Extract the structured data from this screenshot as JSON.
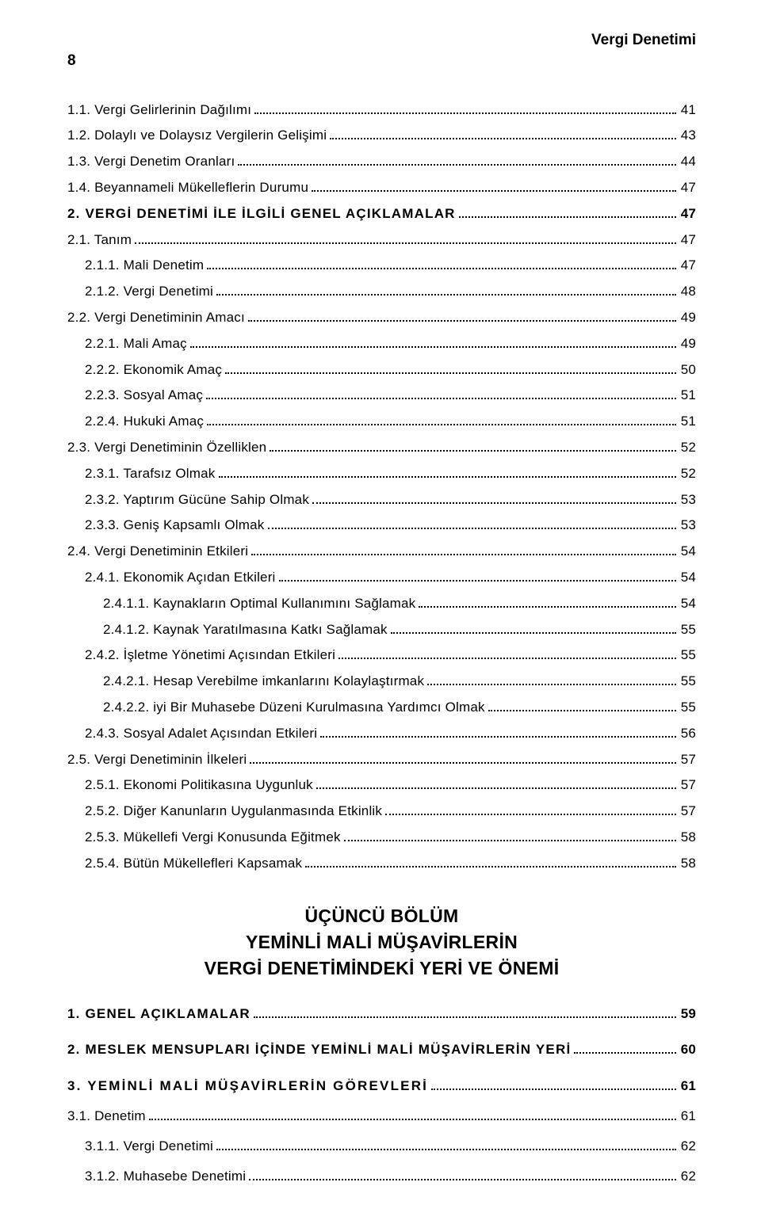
{
  "header": {
    "page_number": "8",
    "running_title": "Vergi Denetimi"
  },
  "toc": [
    {
      "indent": 0,
      "bold": false,
      "label": "1.1. Vergi Gelirlerinin Dağılımı",
      "page": "41"
    },
    {
      "indent": 0,
      "bold": false,
      "label": "1.2. Dolaylı ve Dolaysız Vergilerin Gelişimi",
      "page": "43"
    },
    {
      "indent": 0,
      "bold": false,
      "label": "1.3. Vergi Denetim Oranları",
      "page": "44"
    },
    {
      "indent": 0,
      "bold": false,
      "label": "1.4. Beyannameli Mükelleflerin Durumu",
      "page": "47"
    },
    {
      "indent": 0,
      "bold": true,
      "label": "2. VERGİ DENETİMİ İLE İLGİLİ GENEL AÇIKLAMALAR",
      "page": "47",
      "ls": true
    },
    {
      "indent": 0,
      "bold": false,
      "label": "2.1. Tanım",
      "page": "47"
    },
    {
      "indent": 1,
      "bold": false,
      "label": "2.1.1. Mali Denetim",
      "page": "47"
    },
    {
      "indent": 1,
      "bold": false,
      "label": "2.1.2. Vergi Denetimi",
      "page": "48"
    },
    {
      "indent": 0,
      "bold": false,
      "label": "2.2. Vergi Denetiminin Amacı",
      "page": "49"
    },
    {
      "indent": 1,
      "bold": false,
      "label": "2.2.1. Mali Amaç",
      "page": "49"
    },
    {
      "indent": 1,
      "bold": false,
      "label": "2.2.2. Ekonomik Amaç",
      "page": "50"
    },
    {
      "indent": 1,
      "bold": false,
      "label": "2.2.3. Sosyal Amaç",
      "page": "51"
    },
    {
      "indent": 1,
      "bold": false,
      "label": "2.2.4. Hukuki Amaç",
      "page": "51"
    },
    {
      "indent": 0,
      "bold": false,
      "label": "2.3. Vergi Denetiminin Özelliklen",
      "page": "52"
    },
    {
      "indent": 1,
      "bold": false,
      "label": "2.3.1. Tarafsız Olmak",
      "page": "52"
    },
    {
      "indent": 1,
      "bold": false,
      "label": "2.3.2. Yaptırım Gücüne Sahip Olmak",
      "page": "53"
    },
    {
      "indent": 1,
      "bold": false,
      "label": "2.3.3. Geniş Kapsamlı Olmak",
      "page": "53"
    },
    {
      "indent": 0,
      "bold": false,
      "label": "2.4. Vergi Denetiminin Etkileri",
      "page": "54"
    },
    {
      "indent": 1,
      "bold": false,
      "label": "2.4.1. Ekonomik Açıdan Etkileri",
      "page": "54"
    },
    {
      "indent": 2,
      "bold": false,
      "label": "2.4.1.1. Kaynakların Optimal Kullanımını Sağlamak",
      "page": "54"
    },
    {
      "indent": 2,
      "bold": false,
      "label": "2.4.1.2. Kaynak Yaratılmasına Katkı Sağlamak",
      "page": "55"
    },
    {
      "indent": 1,
      "bold": false,
      "label": "2.4.2. İşletme Yönetimi Açısından Etkileri",
      "page": "55"
    },
    {
      "indent": 2,
      "bold": false,
      "label": "2.4.2.1. Hesap Verebilme imkanlarını Kolaylaştırmak",
      "page": "55"
    },
    {
      "indent": 2,
      "bold": false,
      "label": "2.4.2.2. iyi Bir Muhasebe Düzeni Kurulmasına Yardımcı Olmak",
      "page": "55"
    },
    {
      "indent": 1,
      "bold": false,
      "label": "2.4.3. Sosyal Adalet Açısından Etkileri",
      "page": "56"
    },
    {
      "indent": 0,
      "bold": false,
      "label": "2.5. Vergi Denetiminin İlkeleri",
      "page": "57"
    },
    {
      "indent": 1,
      "bold": false,
      "label": "2.5.1. Ekonomi Politikasına Uygunluk",
      "page": "57"
    },
    {
      "indent": 1,
      "bold": false,
      "label": "2.5.2. Diğer Kanunların Uygulanmasında Etkinlik",
      "page": "57"
    },
    {
      "indent": 1,
      "bold": false,
      "label": "2.5.3. Mükellefi Vergi Konusunda Eğitmek",
      "page": "58"
    },
    {
      "indent": 1,
      "bold": false,
      "label": "2.5.4. Bütün Mükellefleri Kapsamak",
      "page": "58"
    }
  ],
  "section_heading": {
    "line1": "ÜÇÜNCÜ BÖLÜM",
    "line2": "YEMİNLİ MALİ MÜŞAVİRLERİN",
    "line3": "VERGİ DENETİMİNDEKİ YERİ VE ÖNEMİ"
  },
  "toc2": [
    {
      "indent": 0,
      "bold": true,
      "label": "1. GENEL AÇIKLAMALAR",
      "page": "59",
      "ls": true,
      "gap": "none"
    },
    {
      "indent": 0,
      "bold": true,
      "label": "2. MESLEK MENSUPLARI İÇİNDE YEMİNLİ MALİ MÜŞAVİRLERİN YERİ",
      "page": "60",
      "ls": true,
      "gap": "top"
    },
    {
      "indent": 0,
      "bold": true,
      "label": "3. YEMİNLİ MALİ MÜŞAVİRLERİN GÖREVLERİ",
      "page": "61",
      "ls2": true,
      "gap": "top"
    },
    {
      "indent": 0,
      "bold": false,
      "label": "3.1. Denetim",
      "page": "61",
      "gap": "small"
    },
    {
      "indent": 1,
      "bold": false,
      "label": "3.1.1. Vergi Denetimi",
      "page": "62",
      "gap": "small"
    },
    {
      "indent": 1,
      "bold": false,
      "label": "3.1.2. Muhasebe Denetimi",
      "page": "62",
      "gap": "small"
    }
  ]
}
